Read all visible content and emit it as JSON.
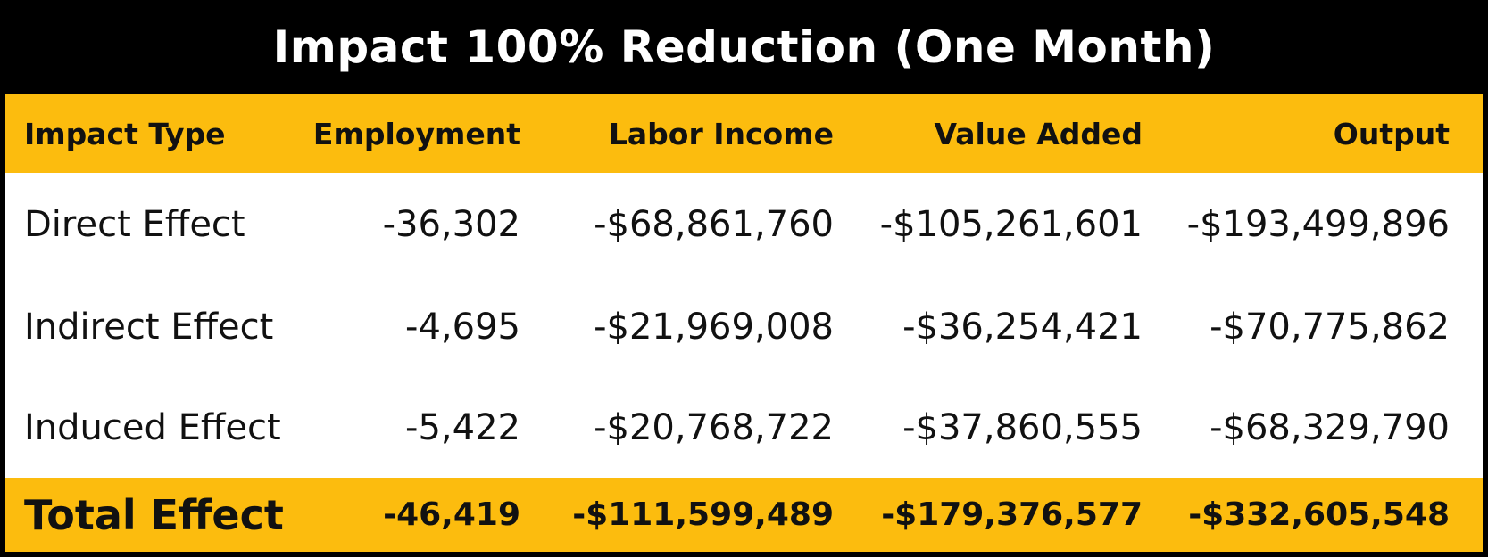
{
  "chart_data": {
    "type": "table",
    "title": "Impact 100% Reduction (One Month)",
    "columns": [
      "Impact Type",
      "Employment",
      "Labor Income",
      "Value Added",
      "Output"
    ],
    "rows": [
      [
        "Direct Effect",
        "-36,302",
        "-$68,861,760",
        "-$105,261,601",
        "-$193,499,896"
      ],
      [
        "Indirect Effect",
        "-4,695",
        "-$21,969,008",
        "-$36,254,421",
        "-$70,775,862"
      ],
      [
        "Induced Effect",
        "-5,422",
        "-$20,768,722",
        "-$37,860,555",
        "-$68,329,790"
      ]
    ],
    "total": [
      "Total Effect",
      "-46,419",
      "-$111,599,489",
      "-$179,376,577",
      "-$332,605,548"
    ]
  },
  "colors": {
    "accent": "#fcbc0e",
    "title_background": "#000000",
    "title_text": "#ffffff",
    "body_background": "#ffffff"
  }
}
